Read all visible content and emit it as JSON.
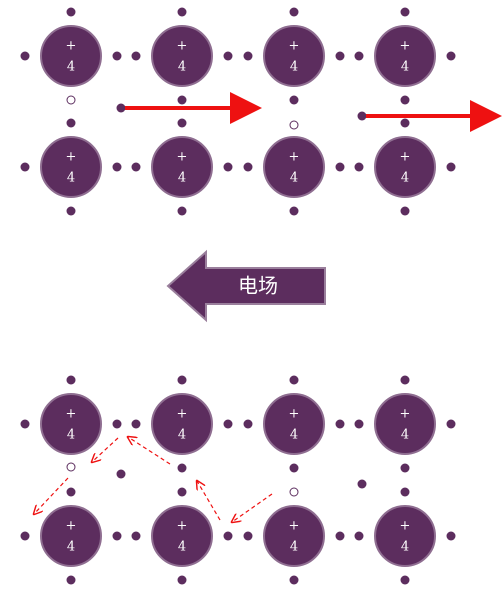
{
  "atom_sign": "+",
  "atom_charge": "4",
  "field_label": "电场"
}
